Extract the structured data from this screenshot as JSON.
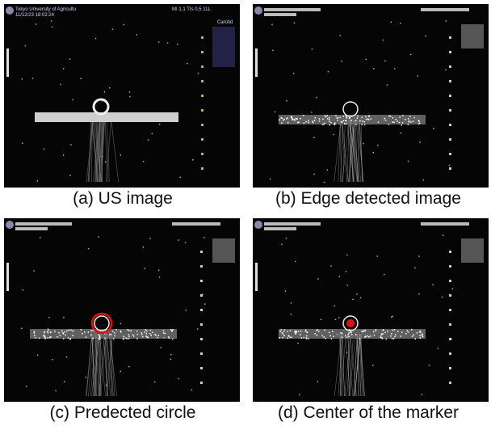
{
  "panels": [
    {
      "caption": "(a) US image",
      "overlay": {
        "institution": "Tokyo University of Agricultu",
        "timestamp": "11/12/23 18:02:24",
        "settings": "MI 1.1   TIs 0.5   11L",
        "preset": "Carotid"
      }
    },
    {
      "caption": "(b) Edge detected image"
    },
    {
      "caption": "(c) Predected circle"
    },
    {
      "caption": "(d) Center of the marker"
    }
  ]
}
